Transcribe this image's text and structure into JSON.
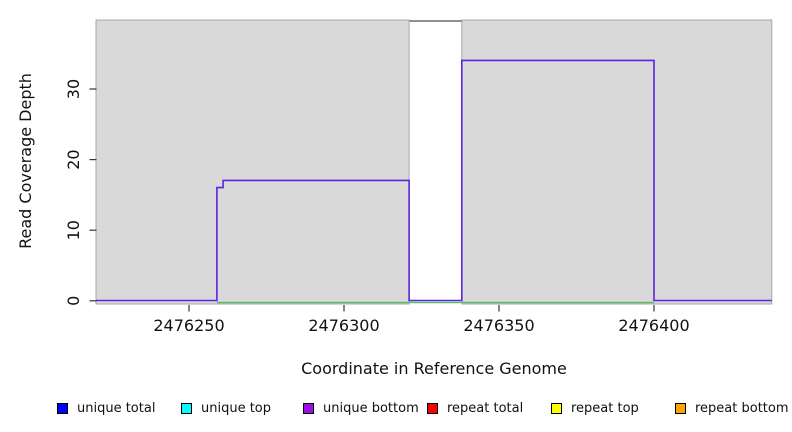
{
  "axes": {
    "x": {
      "label": "Coordinate in Reference Genome",
      "tick_labels": [
        "2476250",
        "2476300",
        "2476350",
        "2476400"
      ]
    },
    "y": {
      "label": "Read Coverage Depth",
      "tick_labels": [
        "0",
        "10",
        "20",
        "30"
      ]
    }
  },
  "legend": {
    "entries": [
      {
        "label": "unique total",
        "color": "#0000ff"
      },
      {
        "label": "unique top",
        "color": "#00ffff"
      },
      {
        "label": "unique bottom",
        "color": "#9a0fe8"
      },
      {
        "label": "repeat total",
        "color": "#ff0000"
      },
      {
        "label": "repeat top",
        "color": "#ffff00"
      },
      {
        "label": "repeat bottom",
        "color": "#ffa500"
      }
    ]
  },
  "colors": {
    "plot_block_fill": "#d9d9d9",
    "plot_block_border": "#a8a8a8",
    "gap_top_line": "#8f8f8f",
    "tick": "#333333",
    "unique_bottom_line": "#5b24e0",
    "baseline_line": "#60bc66"
  },
  "chart_data": {
    "type": "line",
    "title": "",
    "xlabel": "Coordinate in Reference Genome",
    "ylabel": "Read Coverage Depth",
    "xlim": [
      2476220,
      2476438
    ],
    "ylim": [
      0,
      39.6
    ],
    "x_ticks": [
      2476250,
      2476300,
      2476350,
      2476400
    ],
    "y_ticks": [
      0,
      10,
      20,
      30
    ],
    "grid": false,
    "legend_position": "bottom",
    "background_blocks": [
      {
        "x_start": 2476220,
        "x_end": 2476321,
        "note": "shaded off-scale coverage region"
      },
      {
        "x_start": 2476338,
        "x_end": 2476438,
        "note": "shaded off-scale coverage region"
      }
    ],
    "gap": {
      "x_start": 2476321,
      "x_end": 2476338,
      "top_line_at_plot_top": true
    },
    "series": [
      {
        "name": "unique bottom",
        "color": "#5b24e0",
        "style": "step",
        "points": [
          [
            2476220,
            0
          ],
          [
            2476259,
            0
          ],
          [
            2476259,
            16
          ],
          [
            2476261,
            16
          ],
          [
            2476261,
            17
          ],
          [
            2476321,
            17
          ],
          [
            2476321,
            0
          ],
          [
            2476338,
            0
          ],
          [
            2476338,
            34
          ],
          [
            2476400,
            34
          ],
          [
            2476400,
            0
          ],
          [
            2476438,
            0
          ]
        ]
      },
      {
        "name": "baseline green",
        "color": "#60bc66",
        "style": "line",
        "points": [
          [
            2476259,
            0
          ],
          [
            2476400,
            0
          ]
        ]
      }
    ]
  }
}
